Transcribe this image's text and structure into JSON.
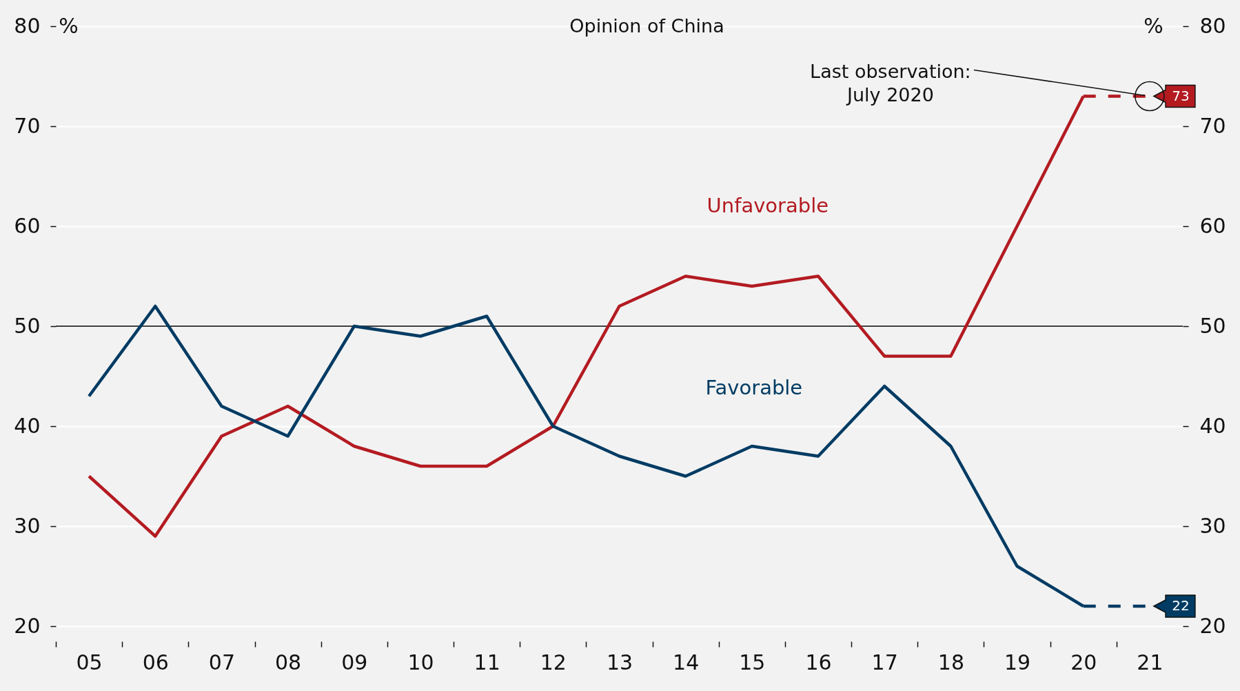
{
  "chart_data": {
    "type": "line",
    "title": "Opinion of China",
    "ylabel": "%",
    "y2label": "%",
    "categories": [
      "05",
      "06",
      "07",
      "08",
      "09",
      "10",
      "11",
      "12",
      "13",
      "14",
      "15",
      "16",
      "17",
      "18",
      "19",
      "20",
      "21"
    ],
    "series": [
      {
        "name": "Unfavorable",
        "color": "#b31b21",
        "line_style": "solid",
        "values": [
          35,
          29,
          39,
          42,
          38,
          36,
          36,
          40,
          52,
          55,
          54,
          55,
          47,
          47,
          60,
          73,
          null
        ]
      },
      {
        "name": "Favorable",
        "color": "#003b63",
        "line_style": "solid",
        "values": [
          43,
          52,
          42,
          39,
          50,
          49,
          51,
          40,
          37,
          35,
          38,
          37,
          44,
          38,
          26,
          22,
          null
        ]
      },
      {
        "color": "#b31b21",
        "line_style": "dashed",
        "values": [
          null,
          null,
          null,
          null,
          null,
          null,
          null,
          null,
          null,
          null,
          null,
          null,
          null,
          null,
          null,
          73,
          73
        ],
        "value_labels": [
          null,
          null,
          null,
          null,
          null,
          null,
          null,
          null,
          null,
          null,
          null,
          null,
          null,
          null,
          null,
          null,
          "73"
        ]
      },
      {
        "color": "#003b63",
        "line_style": "dashed",
        "values": [
          null,
          null,
          null,
          null,
          null,
          null,
          null,
          null,
          null,
          null,
          null,
          null,
          null,
          null,
          null,
          22,
          22
        ],
        "value_labels": [
          null,
          null,
          null,
          null,
          null,
          null,
          null,
          null,
          null,
          null,
          null,
          null,
          null,
          null,
          null,
          null,
          "22"
        ]
      }
    ],
    "ylim": [
      20,
      80
    ],
    "yticks": [
      20,
      30,
      40,
      50,
      60,
      70,
      80
    ],
    "y2lim": [
      20,
      80
    ],
    "y2ticks": [
      20,
      30,
      40,
      50,
      60,
      70,
      80
    ],
    "ref_lines": [
      {
        "axis": "y",
        "value": 50,
        "color": "#000000"
      }
    ],
    "annotations": [
      {
        "text": "Last observation:\nJuly 2020",
        "x": "21",
        "y": 73
      }
    ],
    "grid": "y"
  }
}
